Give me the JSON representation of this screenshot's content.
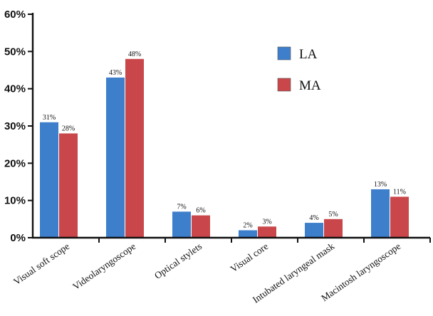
{
  "chart_data": {
    "type": "bar",
    "categories": [
      "Visual soft scope",
      "Videolaryngoscope",
      "Optical stylets",
      "Visual core",
      "Intubated laryngeal mask",
      "Macintosh laryngoscope"
    ],
    "series": [
      {
        "name": "LA",
        "color": "#3e7fcb",
        "values": [
          31,
          43,
          7,
          2,
          4,
          13
        ],
        "labels": [
          "31%",
          "43%",
          "7%",
          "2%",
          "4%",
          "13%"
        ]
      },
      {
        "name": "MA",
        "color": "#c9474a",
        "values": [
          28,
          48,
          6,
          3,
          5,
          11
        ],
        "labels": [
          "28%",
          "48%",
          "6%",
          "3%",
          "5%",
          "11%"
        ]
      }
    ],
    "yticks": [
      "0%",
      "10%",
      "20%",
      "30%",
      "40%",
      "50%",
      "60%"
    ],
    "ylim": [
      0,
      60
    ],
    "ylabel": "",
    "xlabel": "",
    "title": "",
    "grid": false,
    "legend_position": "top-right"
  }
}
